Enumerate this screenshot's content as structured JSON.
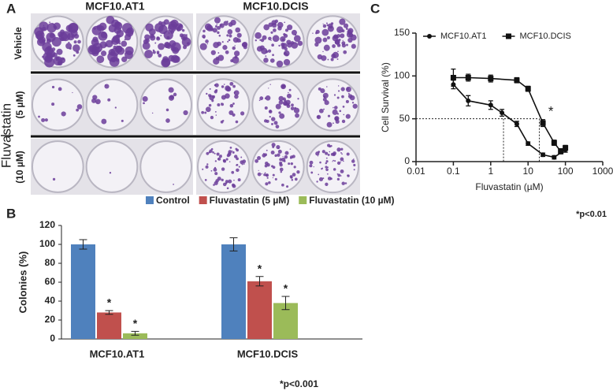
{
  "panel_labels": [
    "A",
    "B",
    "C"
  ],
  "panel_a": {
    "columns": [
      "MCF10.AT1",
      "MCF10.DCIS"
    ],
    "rows": [
      "Vehicle",
      "(5 µM)",
      "(10 µM)"
    ],
    "group_label": "Fluvastatin"
  },
  "chart_data": [
    {
      "type": "bar",
      "ylabel": "Colonies (%)",
      "categories": [
        "MCF10.AT1",
        "MCF10.DCIS"
      ],
      "series": [
        {
          "name": "Control",
          "color": "#4f81bd",
          "values": [
            100,
            100
          ],
          "errors": [
            5,
            7
          ]
        },
        {
          "name": "Fluvastatin (5 µM)",
          "color": "#c0504d",
          "values": [
            28,
            61
          ],
          "errors": [
            2,
            5
          ],
          "sig": [
            "*",
            "*"
          ]
        },
        {
          "name": "Fluvastatin (10 µM)",
          "color": "#9bbb59",
          "values": [
            6,
            38
          ],
          "errors": [
            2,
            7
          ],
          "sig": [
            "*",
            "*"
          ]
        }
      ],
      "ylim": [
        0,
        120
      ],
      "yticks": [
        0,
        20,
        40,
        60,
        80,
        100,
        120
      ],
      "note": "*p<0.001"
    },
    {
      "type": "line",
      "xlabel": "Fluvastatin (µM)",
      "ylabel": "Cell Survival (%)",
      "xscale": "log",
      "series": [
        {
          "name": "MCF10.AT1",
          "marker": "circle",
          "color": "#111111",
          "x": [
            0.1,
            0.25,
            1,
            2,
            5,
            10,
            25,
            50,
            100
          ],
          "values": [
            90,
            71,
            66,
            57,
            44,
            21,
            8,
            5,
            14
          ],
          "errors": [
            5,
            6,
            5,
            4,
            3,
            2,
            2,
            2,
            3
          ]
        },
        {
          "name": "MCF10.DCIS",
          "marker": "square",
          "color": "#111111",
          "x": [
            0.1,
            0.25,
            1,
            5,
            10,
            25,
            50,
            75,
            100
          ],
          "values": [
            98,
            98,
            97,
            95,
            85,
            45,
            22,
            12,
            16
          ],
          "errors": [
            10,
            4,
            4,
            3,
            3,
            4,
            3,
            3,
            3
          ]
        }
      ],
      "xlim": [
        0.01,
        1000
      ],
      "xticks": [
        0.01,
        0.1,
        1,
        10,
        100,
        1000
      ],
      "ylim": [
        0,
        150
      ],
      "yticks": [
        0,
        50,
        100,
        150
      ],
      "reference": {
        "y": 50,
        "x": [
          2.2,
          20
        ]
      },
      "annotation": {
        "text": "*",
        "x": 30,
        "y": 58,
        "color": "#e0533a"
      },
      "note": "*p<0.01"
    }
  ]
}
